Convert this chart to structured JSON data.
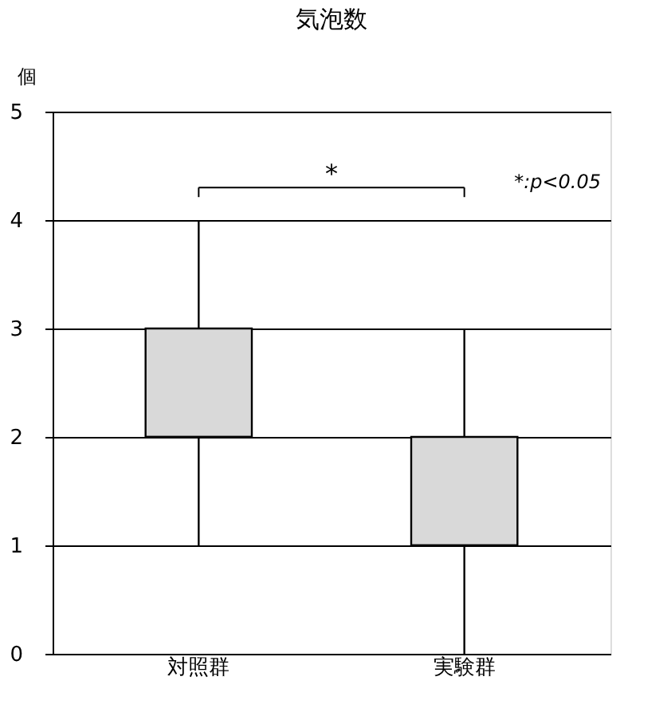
{
  "chart_data": {
    "type": "box",
    "title": "気泡数",
    "ylabel": "個",
    "categories": [
      "対照群",
      "実験群"
    ],
    "boxes": [
      {
        "low": 1,
        "q1": 2,
        "median": 2,
        "q3": 3,
        "high": 4
      },
      {
        "low": 0,
        "q1": 1,
        "median": 1,
        "q3": 2,
        "high": 3
      }
    ],
    "color": "#d9d9d9",
    "ylim": [
      0,
      5
    ],
    "yticks": [
      0,
      1,
      2,
      3,
      4,
      5
    ],
    "grid": "y",
    "annotations": [
      "*",
      "*:p<0.05"
    ]
  }
}
